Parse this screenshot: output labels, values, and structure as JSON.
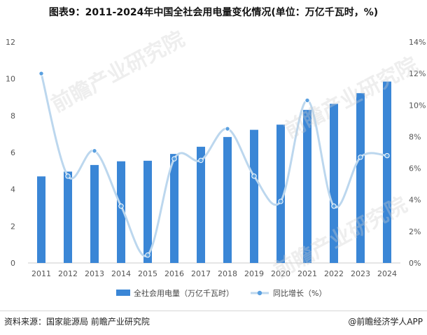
{
  "title": "图表9：2011-2024年中国全社会用电量变化情况(单位：万亿千瓦时，%)",
  "footer": {
    "source": "资料来源：国家能源局 前瞻产业研究院",
    "brand": "@前瞻经济学人APP"
  },
  "watermark": {
    "text": "前瞻产业研究院"
  },
  "chart_data": {
    "type": "bar",
    "categories": [
      "2011",
      "2012",
      "2013",
      "2014",
      "2015",
      "2016",
      "2017",
      "2018",
      "2019",
      "2020",
      "2021",
      "2022",
      "2023",
      "2024"
    ],
    "series": [
      {
        "name": "全社会用电量（万亿千瓦时）",
        "kind": "bar",
        "axis": "left",
        "color": "#3a86d6",
        "values": [
          4.7,
          4.96,
          5.32,
          5.52,
          5.55,
          5.92,
          6.31,
          6.84,
          7.23,
          7.51,
          8.31,
          8.64,
          9.22,
          9.85
        ]
      },
      {
        "name": "同比增长（%）",
        "kind": "line",
        "axis": "right",
        "color": "#bcd7ee",
        "marker_color": "#5aa0e0",
        "values": [
          12.0,
          5.5,
          7.1,
          3.6,
          0.5,
          6.6,
          6.5,
          8.5,
          5.5,
          3.9,
          10.3,
          3.6,
          6.7,
          6.8
        ]
      }
    ],
    "y_left": {
      "ticks": [
        "0",
        "2",
        "4",
        "6",
        "8",
        "10",
        "12"
      ],
      "range": [
        0,
        12
      ]
    },
    "y_right": {
      "ticks": [
        "0%",
        "2%",
        "4%",
        "6%",
        "8%",
        "10%",
        "12%",
        "14%"
      ],
      "range": [
        0,
        14
      ]
    },
    "grid": false,
    "legend": "bottom-center"
  }
}
